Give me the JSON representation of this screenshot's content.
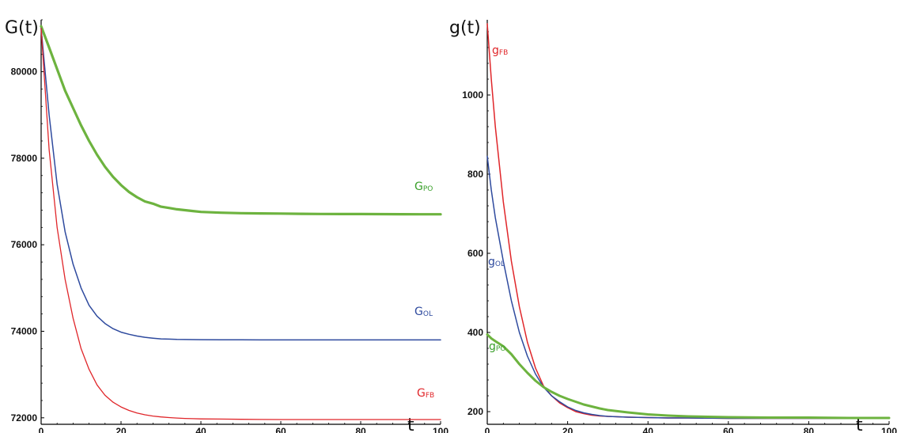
{
  "chart_data": [
    {
      "type": "line",
      "ylabel": "G(t)",
      "xlabel": "t",
      "xlim": [
        0,
        100
      ],
      "ylim": [
        71850,
        81200
      ],
      "xticks": [
        0,
        20,
        40,
        60,
        80,
        100
      ],
      "yticks": [
        72000,
        74000,
        76000,
        78000,
        80000
      ],
      "series": [
        {
          "name": "GPO",
          "label_main": "G",
          "label_sub": "PO",
          "color": "#6db33f",
          "label_color": "#3aa02b",
          "x": [
            0,
            2,
            4,
            6,
            8,
            10,
            12,
            14,
            16,
            18,
            20,
            22,
            24,
            26,
            28,
            30,
            32,
            34,
            36,
            38,
            40,
            45,
            50,
            55,
            60,
            65,
            70,
            75,
            80,
            85,
            90,
            95,
            100
          ],
          "y": [
            81050,
            80560,
            80060,
            79560,
            79160,
            78760,
            78400,
            78080,
            77800,
            77570,
            77380,
            77220,
            77100,
            77000,
            76950,
            76880,
            76850,
            76820,
            76800,
            76780,
            76760,
            76740,
            76730,
            76725,
            76720,
            76715,
            76712,
            76710,
            76710,
            76708,
            76706,
            76705,
            76705
          ]
        },
        {
          "name": "GOL",
          "label_main": "G",
          "label_sub": "OL",
          "color": "#2e4a9e",
          "label_color": "#2e4a9e",
          "x": [
            0,
            2,
            4,
            6,
            8,
            10,
            12,
            14,
            16,
            18,
            20,
            22,
            24,
            26,
            28,
            30,
            32,
            34,
            36,
            38,
            40,
            45,
            50,
            55,
            60,
            65,
            70,
            75,
            80,
            85,
            90,
            95,
            100
          ],
          "y": [
            81000,
            79000,
            77400,
            76300,
            75550,
            75000,
            74600,
            74350,
            74180,
            74060,
            73980,
            73930,
            73890,
            73860,
            73840,
            73825,
            73818,
            73812,
            73810,
            73808,
            73806,
            73804,
            73802,
            73801,
            73800,
            73800,
            73800,
            73800,
            73800,
            73800,
            73800,
            73800,
            73800
          ]
        },
        {
          "name": "GFB",
          "label_main": "G",
          "label_sub": "FB",
          "color": "#e0262a",
          "label_color": "#e0262a",
          "x": [
            0,
            2,
            4,
            6,
            8,
            10,
            12,
            14,
            16,
            18,
            20,
            22,
            24,
            26,
            28,
            30,
            32,
            34,
            36,
            38,
            40,
            45,
            50,
            55,
            60,
            65,
            70,
            75,
            80,
            85,
            90,
            95,
            100
          ],
          "y": [
            81000,
            78200,
            76400,
            75200,
            74300,
            73600,
            73120,
            72760,
            72520,
            72360,
            72250,
            72170,
            72110,
            72070,
            72040,
            72020,
            72005,
            71995,
            71985,
            71980,
            71975,
            71970,
            71965,
            71962,
            71960,
            71960,
            71960,
            71960,
            71960,
            71960,
            71960,
            71960,
            71960
          ]
        }
      ]
    },
    {
      "type": "line",
      "ylabel": "g(t)",
      "xlabel": "t",
      "xlim": [
        0,
        100
      ],
      "ylim": [
        168,
        1190
      ],
      "xticks": [
        0,
        20,
        40,
        60,
        80,
        100
      ],
      "yticks": [
        200,
        400,
        600,
        800,
        1000
      ],
      "series": [
        {
          "name": "gFB",
          "label_main": "g",
          "label_sub": "FB",
          "color": "#e0262a",
          "label_color": "#e0262a",
          "x": [
            0,
            1,
            2,
            4,
            6,
            8,
            10,
            12,
            14,
            16,
            18,
            20,
            22,
            24,
            26,
            28,
            30,
            35,
            40,
            45,
            50,
            60,
            70,
            80,
            90,
            100
          ],
          "y": [
            1180,
            1040,
            920,
            730,
            580,
            465,
            375,
            310,
            265,
            240,
            222,
            210,
            200,
            195,
            191,
            189,
            188,
            186,
            185,
            184,
            184,
            183,
            183,
            183,
            183,
            183
          ]
        },
        {
          "name": "gOL",
          "label_main": "g",
          "label_sub": "OL",
          "color": "#2e4a9e",
          "label_color": "#2e4a9e",
          "x": [
            0,
            1,
            2,
            4,
            6,
            8,
            10,
            12,
            14,
            16,
            18,
            20,
            22,
            24,
            26,
            28,
            30,
            35,
            40,
            45,
            50,
            60,
            70,
            80,
            90,
            100
          ],
          "y": [
            845,
            760,
            690,
            580,
            480,
            400,
            340,
            295,
            262,
            240,
            225,
            212,
            203,
            197,
            193,
            190,
            188,
            186,
            185,
            184,
            184,
            183,
            183,
            183,
            183,
            183
          ]
        },
        {
          "name": "gPO",
          "label_main": "g",
          "label_sub": "PO",
          "color": "#6db33f",
          "label_color": "#3aa02b",
          "x": [
            0,
            1,
            2,
            4,
            6,
            8,
            10,
            12,
            14,
            16,
            18,
            20,
            22,
            24,
            26,
            28,
            30,
            35,
            40,
            45,
            50,
            60,
            70,
            80,
            90,
            100
          ],
          "y": [
            395,
            385,
            378,
            365,
            345,
            320,
            298,
            278,
            262,
            250,
            240,
            232,
            225,
            218,
            213,
            208,
            204,
            198,
            193,
            190,
            188,
            186,
            185,
            185,
            184,
            184
          ]
        }
      ]
    }
  ]
}
